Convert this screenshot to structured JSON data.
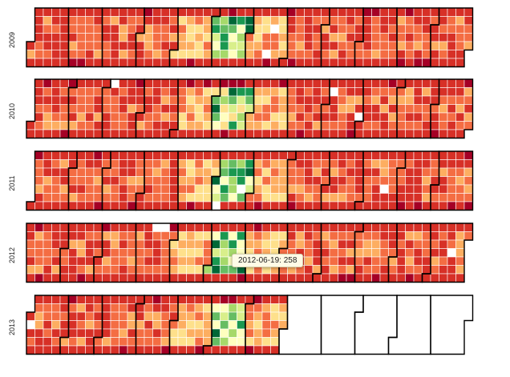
{
  "chart_data": {
    "type": "heatmap",
    "layout": "calendar",
    "rows": [
      "2009",
      "2010",
      "2011",
      "2012",
      "2013"
    ],
    "months_per_row": 12,
    "data_end_label": "2013-07",
    "color_scale": {
      "name": "RdYlGn",
      "stops": [
        "#a50026",
        "#d73027",
        "#f46d43",
        "#fdae61",
        "#fee08b",
        "#ffffbf",
        "#d9ef8b",
        "#a6d96a",
        "#66bd63",
        "#1a9850",
        "#006837"
      ]
    },
    "tooltip": {
      "date": "2012-06-19",
      "value": 258,
      "text": "2012-06-19: 258"
    },
    "notes": "Daily values per cell; summer months (June) reach the green end of the scale, the rest of the year is mostly red/orange. Exact per-day values are not legible from the image; colors are approximated."
  }
}
